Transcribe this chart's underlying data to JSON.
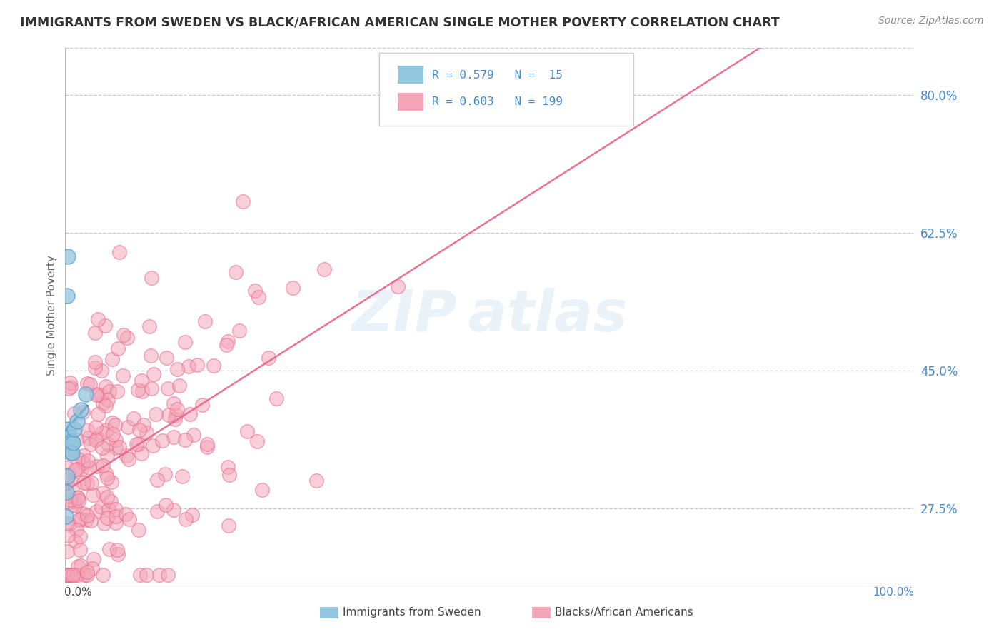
{
  "title": "IMMIGRANTS FROM SWEDEN VS BLACK/AFRICAN AMERICAN SINGLE MOTHER POVERTY CORRELATION CHART",
  "source": "Source: ZipAtlas.com",
  "ylabel": "Single Mother Poverty",
  "ytick_labels": [
    "27.5%",
    "45.0%",
    "62.5%",
    "80.0%"
  ],
  "ytick_values": [
    0.275,
    0.45,
    0.625,
    0.8
  ],
  "xlim": [
    0.0,
    1.0
  ],
  "ylim": [
    0.18,
    0.86
  ],
  "color_blue": "#92c5de",
  "color_blue_line": "#2166ac",
  "color_pink": "#f4a6b8",
  "color_pink_line": "#e8638a",
  "background": "#ffffff",
  "grid_color": "#c8c8c8",
  "legend_label_blue": "Immigrants from Sweden",
  "legend_label_pink": "Blacks/African Americans",
  "title_color": "#333333",
  "source_color": "#888888",
  "tick_color": "#4488cc"
}
